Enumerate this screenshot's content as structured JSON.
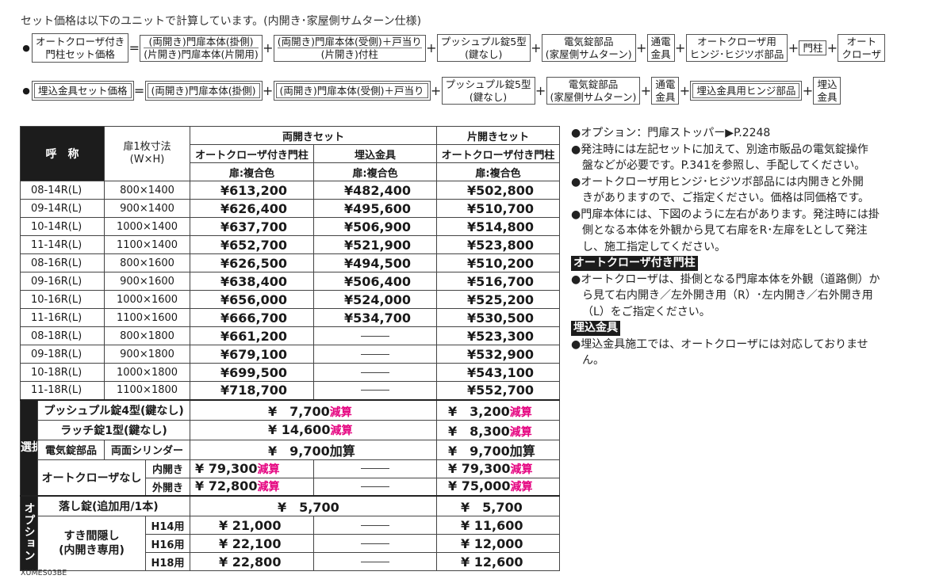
{
  "header": "セット価格は以下のユニットで計算しています。(内開き･家屋側サムターン仕様)",
  "formula1": {
    "bullet": "●",
    "result_l1": "オートクローザ付き",
    "result_l2": "門柱セット価格",
    "eq": "=",
    "plus": "+",
    "t1_l1": "(両開き)門扉本体(掛側)",
    "t1_l2": "(片開き)門扉本体(片開用)",
    "t2_l1": "(両開き)門扉本体(受側)＋戸当り",
    "t2_l2": "(片開き)付柱",
    "t3_l1": "プッシュプル錠5型",
    "t3_l2": "(鍵なし)",
    "t4_l1": "電気錠部品",
    "t4_l2": "(家屋側サムターン)",
    "t5_l1": "通電",
    "t5_l2": "金具",
    "t6_l1": "オートクローザ用",
    "t6_l2": "ヒンジ･ヒジツボ部品",
    "t7": "門柱",
    "t8_l1": "オート",
    "t8_l2": "クローザ"
  },
  "formula2": {
    "bullet": "●",
    "result": "埋込金具セット価格",
    "eq": "=",
    "plus": "+",
    "t1": "(両開き)門扉本体(掛側)",
    "t2": "(両開き)門扉本体(受側)＋戸当り",
    "t3_l1": "プッシュプル錠5型",
    "t3_l2": "(鍵なし)",
    "t4_l1": "電気錠部品",
    "t4_l2": "(家屋側サムターン)",
    "t5_l1": "通電",
    "t5_l2": "金具",
    "t6": "埋込金具用ヒンジ部品",
    "t7_l1": "埋込",
    "t7_l2": "金具"
  },
  "table": {
    "h_name": "呼　称",
    "h_size_l1": "扉1枚寸法",
    "h_size_l2": "(W×H)",
    "h_double": "両開きセット",
    "h_single": "片開きセット",
    "h_auto": "オートクローザ付き門柱",
    "h_embed": "埋込金具",
    "h_auto2": "オートクローザ付き門柱",
    "h_color": "扉:複合色",
    "rows": [
      {
        "code": "08-14R(L)",
        "size": "800×1400",
        "auto": "¥613,200",
        "embed": "¥482,400",
        "single": "¥502,800"
      },
      {
        "code": "09-14R(L)",
        "size": "900×1400",
        "auto": "¥626,400",
        "embed": "¥495,600",
        "single": "¥510,700"
      },
      {
        "code": "10-14R(L)",
        "size": "1000×1400",
        "auto": "¥637,700",
        "embed": "¥506,900",
        "single": "¥514,800"
      },
      {
        "code": "11-14R(L)",
        "size": "1100×1400",
        "auto": "¥652,700",
        "embed": "¥521,900",
        "single": "¥523,800"
      },
      {
        "code": "08-16R(L)",
        "size": "800×1600",
        "auto": "¥626,500",
        "embed": "¥494,500",
        "single": "¥510,200"
      },
      {
        "code": "09-16R(L)",
        "size": "900×1600",
        "auto": "¥638,400",
        "embed": "¥506,400",
        "single": "¥516,700"
      },
      {
        "code": "10-16R(L)",
        "size": "1000×1600",
        "auto": "¥656,000",
        "embed": "¥524,000",
        "single": "¥525,200"
      },
      {
        "code": "11-16R(L)",
        "size": "1100×1600",
        "auto": "¥666,700",
        "embed": "¥534,700",
        "single": "¥530,500"
      },
      {
        "code": "08-18R(L)",
        "size": "800×1800",
        "auto": "¥661,200",
        "embed": "",
        "single": "¥523,300"
      },
      {
        "code": "09-18R(L)",
        "size": "900×1800",
        "auto": "¥679,100",
        "embed": "",
        "single": "¥532,900"
      },
      {
        "code": "10-18R(L)",
        "size": "1000×1800",
        "auto": "¥699,500",
        "embed": "",
        "single": "¥543,100"
      },
      {
        "code": "11-18R(L)",
        "size": "1100×1800",
        "auto": "¥718,700",
        "embed": "",
        "single": "¥552,700"
      }
    ],
    "select_label": "選択",
    "opt_label": "オプション",
    "push_label": "プッシュプル錠4型(鍵なし)",
    "push_double": "¥　7,700",
    "push_double_tag": "減算",
    "push_single": "¥　3,200",
    "push_single_tag": "減算",
    "latch_label": "ラッチ錠1型(鍵なし)",
    "latch_double": "¥ 14,600",
    "latch_double_tag": "減算",
    "latch_single": "¥　8,300",
    "latch_single_tag": "減算",
    "elec_label": "電気錠部品",
    "elec_sub": "両面シリンダー",
    "elec_double": "¥　9,700加算",
    "elec_single": "¥　9,700加算",
    "noauto_label": "オートクローザなし",
    "in_label": "内開き",
    "out_label": "外開き",
    "noauto_in_double": "¥ 79,300",
    "noauto_in_double_tag": "減算",
    "noauto_in_single": "¥ 79,300",
    "noauto_in_single_tag": "減算",
    "noauto_out_double": "¥ 72,800",
    "noauto_out_double_tag": "減算",
    "noauto_out_single": "¥ 75,000",
    "noauto_out_single_tag": "減算",
    "drop_label": "落し錠(追加用/1本)",
    "drop_double": "¥　5,700",
    "drop_single": "¥　5,700",
    "gap_label_l1": "すき間隠し",
    "gap_label_l2": "(内開き専用)",
    "gap_rows": [
      {
        "h": "H14用",
        "double": "¥ 21,000",
        "single": "¥ 11,600"
      },
      {
        "h": "H16用",
        "double": "¥ 22,100",
        "single": "¥ 12,000"
      },
      {
        "h": "H18用",
        "double": "¥ 22,800",
        "single": "¥ 12,600"
      }
    ]
  },
  "notes": {
    "n1": "●オプション：門扉ストッパー▶P.2248",
    "n2": "●発注時には左記セットに加えて、別途市販品の電気錠操作",
    "n2b": "盤などが必要です。P.341を参照し、手配してください。",
    "n3": "●オートクローザ用ヒンジ･ヒジツボ部品には内開きと外開",
    "n3b": "きがありますので、ご指定ください。価格は同価格です。",
    "n4": "●門扉本体には、下図のように左右があります。発注時には掛",
    "n4b": "側となる本体を外観から見て右扉をR･左扉をLとして発注",
    "n4c": "し、施工指定してください。",
    "h1": "オートクローザ付き門柱",
    "n5": "●オートクローザは、掛側となる門扉本体を外観（道路側）か",
    "n5b": "ら見て右内開き／左外開き用（R）･左内開き／右外開き用",
    "n5c": "（L）をご指定ください。",
    "h2": "埋込金具",
    "n6": "●埋込金具施工では、オートクローザには対応しておりませ",
    "n6b": "ん。"
  },
  "footer_code": "XUMES03BE"
}
